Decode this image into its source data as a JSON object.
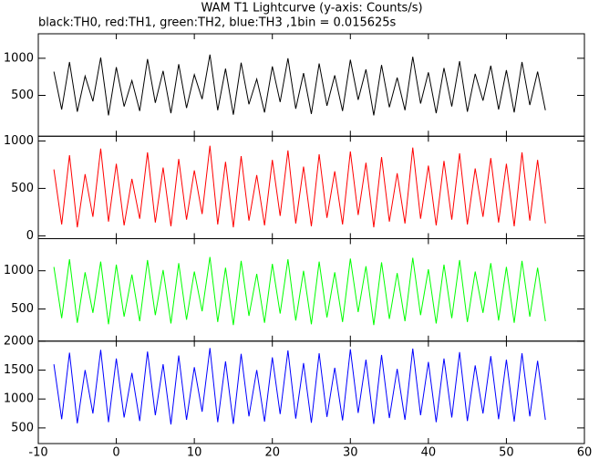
{
  "chart_data": {
    "type": "line",
    "title": "WAM T1 Lightcurve (y-axis: Counts/s)",
    "subtitle": "black:TH0, red:TH1, green:TH2, blue:TH3 ,1bin = 0.015625s",
    "x": [
      -8,
      -7,
      -6,
      -5,
      -4,
      -3,
      -2,
      -1,
      0,
      1,
      2,
      3,
      4,
      5,
      6,
      7,
      8,
      9,
      10,
      11,
      12,
      13,
      14,
      15,
      16,
      17,
      18,
      19,
      20,
      21,
      22,
      23,
      24,
      25,
      26,
      27,
      28,
      29,
      30,
      31,
      32,
      33,
      34,
      35,
      36,
      37,
      38,
      39,
      40,
      41,
      42,
      43,
      44,
      45,
      46,
      47,
      48,
      49,
      50,
      51,
      52,
      53,
      54,
      55
    ],
    "xlim": [
      -10,
      60
    ],
    "xticks": [
      -10,
      0,
      10,
      20,
      30,
      40,
      50,
      60
    ],
    "series": [
      {
        "color": "#000000",
        "ylim": [
          -50,
          1330
        ],
        "yticks": [
          500,
          1000
        ],
        "values": [
          820,
          310,
          950,
          280,
          760,
          420,
          1010,
          230,
          880,
          350,
          700,
          290,
          990,
          400,
          830,
          260,
          920,
          330,
          780,
          450,
          1050,
          300,
          860,
          240,
          940,
          380,
          720,
          270,
          890,
          410,
          1000,
          320,
          800,
          250,
          930,
          360,
          770,
          290,
          980,
          440,
          850,
          230,
          910,
          340,
          740,
          300,
          1020,
          390,
          810,
          260,
          870,
          350,
          960,
          280,
          790,
          430,
          900,
          310,
          840,
          270,
          950,
          370,
          820,
          300
        ]
      },
      {
        "color": "#ff0000",
        "ylim": [
          -30,
          1050
        ],
        "yticks": [
          0,
          500,
          1000
        ],
        "values": [
          700,
          120,
          850,
          90,
          650,
          200,
          920,
          150,
          760,
          110,
          600,
          180,
          880,
          140,
          720,
          100,
          810,
          170,
          690,
          230,
          950,
          120,
          780,
          90,
          840,
          160,
          640,
          110,
          800,
          210,
          900,
          130,
          730,
          100,
          860,
          190,
          680,
          120,
          890,
          220,
          770,
          90,
          830,
          150,
          660,
          130,
          930,
          180,
          740,
          110,
          790,
          170,
          870,
          120,
          710,
          200,
          820,
          140,
          760,
          100,
          880,
          160,
          800,
          130
        ]
      },
      {
        "color": "#00ff00",
        "ylim": [
          80,
          1420
        ],
        "yticks": [
          500,
          1000
        ],
        "values": [
          1050,
          380,
          1150,
          320,
          980,
          450,
          1120,
          300,
          1080,
          400,
          950,
          340,
          1140,
          420,
          1010,
          310,
          1100,
          360,
          990,
          470,
          1180,
          330,
          1040,
          290,
          1130,
          410,
          960,
          320,
          1090,
          440,
          1150,
          350,
          1000,
          300,
          1120,
          390,
          980,
          330,
          1160,
          460,
          1060,
          290,
          1110,
          370,
          970,
          340,
          1170,
          420,
          1020,
          310,
          1080,
          380,
          1140,
          330,
          990,
          450,
          1100,
          350,
          1050,
          320,
          1130,
          400,
          1040,
          340
        ]
      },
      {
        "color": "#0000ff",
        "ylim": [
          230,
          2000
        ],
        "yticks": [
          500,
          1000,
          1500,
          2000
        ],
        "values": [
          1600,
          650,
          1800,
          580,
          1500,
          750,
          1850,
          600,
          1700,
          680,
          1450,
          620,
          1820,
          720,
          1600,
          560,
          1750,
          640,
          1550,
          780,
          1880,
          600,
          1650,
          570,
          1780,
          700,
          1500,
          610,
          1720,
          740,
          1840,
          660,
          1620,
          590,
          1790,
          690,
          1540,
          630,
          1860,
          760,
          1680,
          570,
          1760,
          670,
          1520,
          640,
          1870,
          720,
          1640,
          600,
          1700,
          680,
          1810,
          620,
          1580,
          750,
          1740,
          650,
          1680,
          610,
          1790,
          700,
          1660,
          640
        ]
      }
    ]
  }
}
